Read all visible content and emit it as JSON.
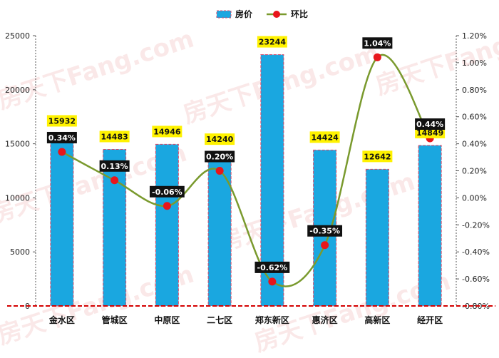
{
  "legend": {
    "bar_label": "房价",
    "line_label": "环比"
  },
  "watermark": "房天下Fang.com",
  "colors": {
    "bar_fill": "#1AA7E0",
    "bar_border": "#D94A6A",
    "line": "#7A9A2E",
    "point": "#E8151B",
    "bar_label_bg": "#FFF200",
    "pct_label_bg": "#111111",
    "baseline": "#D40000"
  },
  "chart_data": {
    "type": "bar",
    "categories": [
      "金水区",
      "管城区",
      "中原区",
      "二七区",
      "郑东新区",
      "惠济区",
      "高新区",
      "经开区"
    ],
    "series": [
      {
        "name": "房价",
        "type": "bar",
        "axis": "left",
        "values": [
          15932,
          14483,
          14946,
          14240,
          23244,
          14424,
          12642,
          14849
        ]
      },
      {
        "name": "环比",
        "type": "line",
        "axis": "right",
        "values": [
          0.34,
          0.13,
          -0.06,
          0.2,
          -0.62,
          -0.35,
          1.04,
          0.44
        ]
      }
    ],
    "bar_labels": [
      "15932",
      "14483",
      "14946",
      "14240",
      "23244",
      "14424",
      "12642",
      "14849"
    ],
    "pct_labels": [
      "0.34%",
      "0.13%",
      "-0.06%",
      "0.20%",
      "-0.62%",
      "-0.35%",
      "1.04%",
      "0.44%"
    ],
    "left_axis": {
      "ylim": [
        0,
        25000
      ],
      "ticks": [
        "0",
        "5000",
        "10000",
        "15000",
        "20000",
        "25000"
      ]
    },
    "right_axis": {
      "ylim": [
        -0.8,
        1.2
      ],
      "ticks": [
        "-0.80%",
        "-0.60%",
        "-0.40%",
        "-0.20%",
        "0.00%",
        "0.20%",
        "0.40%",
        "0.60%",
        "0.80%",
        "1.00%",
        "1.20%"
      ]
    },
    "legend_position": "top-center",
    "grid": false
  }
}
